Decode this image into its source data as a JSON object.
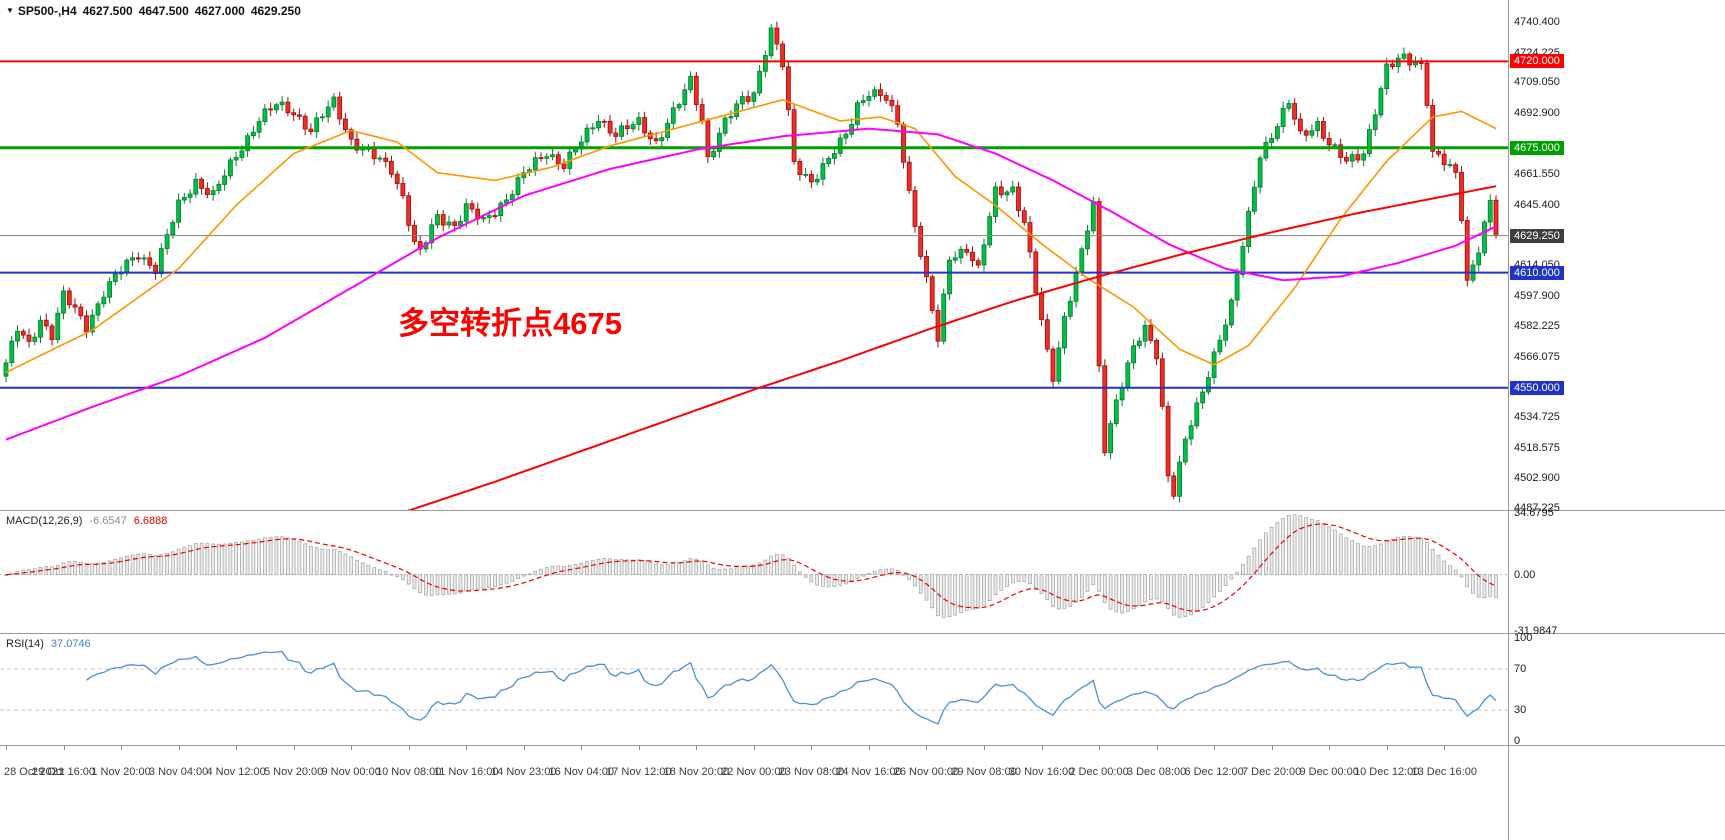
{
  "title": {
    "marker": "▼",
    "symbol": "SP500-,H4",
    "open": "4627.500",
    "high": "4647.500",
    "low": "4627.000",
    "close": "4629.250"
  },
  "annotation": {
    "text": "多空转折点4675",
    "color": "#ff0000"
  },
  "chart_data": {
    "type": "candlestick",
    "symbol": "SP500-",
    "timeframe": "H4",
    "current": {
      "open": 4627.5,
      "high": 4647.5,
      "low": 4627.0,
      "close": 4629.25
    },
    "bars": 260,
    "first_open": 4556,
    "x_label_every": 10,
    "x_labels": [
      "28 Oct 2021",
      "29 Oct 16:00",
      "1 Nov 20:00",
      "3 Nov 04:00",
      "4 Nov 12:00",
      "5 Nov 20:00",
      "9 Nov 00:00",
      "10 Nov 08:00",
      "11 Nov 16:00",
      "14 Nov 23:00",
      "16 Nov 04:00",
      "17 Nov 12:00",
      "18 Nov 20:00",
      "22 Nov 00:00",
      "23 Nov 08:00",
      "24 Nov 16:00",
      "26 Nov 00:00",
      "29 Nov 08:00",
      "30 Nov 16:00",
      "2 Dec 00:00",
      "3 Dec 08:00",
      "6 Dec 12:00",
      "7 Dec 20:00",
      "9 Dec 00:00",
      "10 Dec 12:00",
      "13 Dec 16:00"
    ],
    "y_axis": {
      "top": 4752.0,
      "bottom": 4486.3,
      "ticks": [
        "4740.400",
        "4724.225",
        "4709.050",
        "4692.900",
        "4661.550",
        "4645.400",
        "4614.050",
        "4597.900",
        "4582.225",
        "4566.075",
        "4534.725",
        "4518.575",
        "4502.900",
        "4487.225"
      ]
    },
    "horizontal_lines": [
      {
        "price": 4720.0,
        "label": "4720.000",
        "color": "#ff0000",
        "width": 2
      },
      {
        "price": 4675.0,
        "label": "4675.000",
        "color": "#00a000",
        "width": 3
      },
      {
        "price": 4629.25,
        "label": "4629.250",
        "color": "#808080",
        "width": 1,
        "badge": "#3f3f3f"
      },
      {
        "price": 4610.0,
        "label": "4610.000",
        "color": "#2233cc",
        "width": 2
      },
      {
        "price": 4550.0,
        "label": "4550.000",
        "color": "#2233cc",
        "width": 2
      }
    ],
    "candles": {
      "up_fill": "#00bf45",
      "up_border": "#0b7a2e",
      "down_fill": "#ee2e24",
      "down_border": "#9e0b0b"
    },
    "price_path": [
      [
        0,
        4563
      ],
      [
        2,
        4580
      ],
      [
        4,
        4572
      ],
      [
        6,
        4586
      ],
      [
        8,
        4578
      ],
      [
        10,
        4598
      ],
      [
        12,
        4590
      ],
      [
        14,
        4582
      ],
      [
        17,
        4600
      ],
      [
        20,
        4611
      ],
      [
        23,
        4620
      ],
      [
        26,
        4612
      ],
      [
        30,
        4645
      ],
      [
        33,
        4658
      ],
      [
        36,
        4650
      ],
      [
        40,
        4671
      ],
      [
        44,
        4690
      ],
      [
        47,
        4697
      ],
      [
        50,
        4694
      ],
      [
        53,
        4684
      ],
      [
        57,
        4699
      ],
      [
        60,
        4679
      ],
      [
        63,
        4672
      ],
      [
        67,
        4664
      ],
      [
        69,
        4650
      ],
      [
        71,
        4625
      ],
      [
        72,
        4620
      ],
      [
        75,
        4639
      ],
      [
        78,
        4635
      ],
      [
        80,
        4644
      ],
      [
        83,
        4636
      ],
      [
        87,
        4649
      ],
      [
        90,
        4661
      ],
      [
        94,
        4673
      ],
      [
        97,
        4666
      ],
      [
        100,
        4678
      ],
      [
        103,
        4691
      ],
      [
        106,
        4682
      ],
      [
        110,
        4688
      ],
      [
        113,
        4678
      ],
      [
        117,
        4698
      ],
      [
        119,
        4710
      ],
      [
        121,
        4690
      ],
      [
        122,
        4670
      ],
      [
        125,
        4688
      ],
      [
        128,
        4700
      ],
      [
        130,
        4704
      ],
      [
        132,
        4726
      ],
      [
        133,
        4736
      ],
      [
        135,
        4718
      ],
      [
        137,
        4667
      ],
      [
        140,
        4658
      ],
      [
        143,
        4668
      ],
      [
        146,
        4682
      ],
      [
        148,
        4698
      ],
      [
        150,
        4704
      ],
      [
        153,
        4700
      ],
      [
        155,
        4688
      ],
      [
        157,
        4652
      ],
      [
        159,
        4620
      ],
      [
        161,
        4590
      ],
      [
        162,
        4574
      ],
      [
        164,
        4618
      ],
      [
        167,
        4623
      ],
      [
        169,
        4611
      ],
      [
        172,
        4652
      ],
      [
        175,
        4654
      ],
      [
        177,
        4636
      ],
      [
        179,
        4600
      ],
      [
        181,
        4568
      ],
      [
        182,
        4556
      ],
      [
        184,
        4587
      ],
      [
        187,
        4620
      ],
      [
        189,
        4645
      ],
      [
        190,
        4560
      ],
      [
        191,
        4519
      ],
      [
        193,
        4544
      ],
      [
        196,
        4570
      ],
      [
        198,
        4580
      ],
      [
        200,
        4568
      ],
      [
        201,
        4540
      ],
      [
        202,
        4505
      ],
      [
        203,
        4496
      ],
      [
        205,
        4522
      ],
      [
        208,
        4548
      ],
      [
        210,
        4568
      ],
      [
        213,
        4593
      ],
      [
        216,
        4639
      ],
      [
        218,
        4672
      ],
      [
        220,
        4682
      ],
      [
        223,
        4698
      ],
      [
        225,
        4681
      ],
      [
        228,
        4688
      ],
      [
        230,
        4677
      ],
      [
        233,
        4667
      ],
      [
        236,
        4673
      ],
      [
        238,
        4695
      ],
      [
        240,
        4716
      ],
      [
        243,
        4722
      ],
      [
        246,
        4719
      ],
      [
        247,
        4700
      ],
      [
        248,
        4672
      ],
      [
        250,
        4667
      ],
      [
        252,
        4661
      ],
      [
        253,
        4640
      ],
      [
        254,
        4606
      ],
      [
        256,
        4623
      ],
      [
        258,
        4646
      ],
      [
        259,
        4629.25
      ]
    ],
    "moving_averages": [
      {
        "name": "ma-orange",
        "color": "#ff9500",
        "width": 1.6,
        "path": [
          [
            0,
            4558
          ],
          [
            15,
            4580
          ],
          [
            30,
            4612
          ],
          [
            40,
            4645
          ],
          [
            50,
            4672
          ],
          [
            60,
            4684
          ],
          [
            68,
            4678
          ],
          [
            75,
            4662
          ],
          [
            85,
            4658
          ],
          [
            95,
            4665
          ],
          [
            105,
            4676
          ],
          [
            115,
            4684
          ],
          [
            125,
            4692
          ],
          [
            135,
            4700
          ],
          [
            145,
            4689
          ],
          [
            152,
            4691
          ],
          [
            158,
            4685
          ],
          [
            165,
            4660
          ],
          [
            172,
            4645
          ],
          [
            180,
            4625
          ],
          [
            188,
            4607
          ],
          [
            196,
            4592
          ],
          [
            204,
            4570
          ],
          [
            210,
            4562
          ],
          [
            216,
            4572
          ],
          [
            224,
            4602
          ],
          [
            232,
            4638
          ],
          [
            240,
            4668
          ],
          [
            248,
            4691
          ],
          [
            253,
            4694
          ],
          [
            259,
            4685
          ]
        ]
      },
      {
        "name": "ma-magenta",
        "color": "#ff00ff",
        "width": 2,
        "path": [
          [
            0,
            4523
          ],
          [
            15,
            4540
          ],
          [
            30,
            4556
          ],
          [
            45,
            4576
          ],
          [
            60,
            4602
          ],
          [
            75,
            4628
          ],
          [
            90,
            4650
          ],
          [
            105,
            4664
          ],
          [
            120,
            4674
          ],
          [
            135,
            4681
          ],
          [
            150,
            4685
          ],
          [
            162,
            4682
          ],
          [
            172,
            4672
          ],
          [
            182,
            4658
          ],
          [
            192,
            4642
          ],
          [
            202,
            4625
          ],
          [
            212,
            4612
          ],
          [
            222,
            4606
          ],
          [
            232,
            4608
          ],
          [
            242,
            4615
          ],
          [
            252,
            4624
          ],
          [
            259,
            4634
          ]
        ]
      },
      {
        "name": "ma-red",
        "color": "#ff0000",
        "width": 2,
        "path": [
          [
            58,
            4476
          ],
          [
            70,
            4486
          ],
          [
            85,
            4501
          ],
          [
            100,
            4517
          ],
          [
            115,
            4533
          ],
          [
            130,
            4549
          ],
          [
            145,
            4564
          ],
          [
            160,
            4580
          ],
          [
            175,
            4595
          ],
          [
            190,
            4608
          ],
          [
            205,
            4620
          ],
          [
            220,
            4631
          ],
          [
            235,
            4641
          ],
          [
            247,
            4648
          ],
          [
            259,
            4655
          ]
        ]
      }
    ],
    "indicators": [
      {
        "id": "macd",
        "label": "MACD(12,26,9)",
        "values": [
          "-6.6547",
          "6.6888"
        ],
        "params": {
          "fast": 12,
          "slow": 26,
          "signal": 9
        },
        "ticks": [
          {
            "t": "34.6795",
            "v": 34.6795
          },
          {
            "t": "0.00",
            "v": 0
          },
          {
            "t": "-31.9847",
            "v": -31.9847
          }
        ],
        "histogram_color": "#ececec",
        "histogram_border": "#a0a0a0",
        "signal_color": "#ee0000"
      },
      {
        "id": "rsi",
        "label": "RSI(14)",
        "value": "37.0746",
        "period": 14,
        "ticks": [
          {
            "t": "100",
            "v": 100
          },
          {
            "t": "70",
            "v": 70
          },
          {
            "t": "30",
            "v": 30
          },
          {
            "t": "0",
            "v": 0
          }
        ],
        "levels": [
          70,
          30
        ],
        "line_color": "#4a90d9"
      }
    ]
  }
}
